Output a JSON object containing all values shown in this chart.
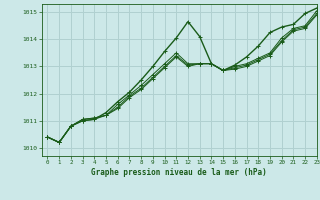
{
  "title": "Graphe pression niveau de la mer (hPa)",
  "bg_color": "#cce8e8",
  "grid_color": "#b0d0d0",
  "line_color": "#1a5c1a",
  "marker_color": "#1a5c1a",
  "xlim": [
    -0.5,
    23
  ],
  "ylim": [
    1009.7,
    1015.3
  ],
  "yticks": [
    1010,
    1011,
    1012,
    1013,
    1014,
    1015
  ],
  "xticks": [
    0,
    1,
    2,
    3,
    4,
    5,
    6,
    7,
    8,
    9,
    10,
    11,
    12,
    13,
    14,
    15,
    16,
    17,
    18,
    19,
    20,
    21,
    22,
    23
  ],
  "series": [
    [
      1010.4,
      1010.2,
      1010.8,
      1011.0,
      1011.05,
      1011.3,
      1011.7,
      1012.05,
      1012.5,
      1013.0,
      1013.55,
      1014.05,
      1014.65,
      1014.1,
      1013.1,
      1012.85,
      1013.05,
      1013.35,
      1013.75,
      1014.25,
      1014.45,
      1014.55,
      1014.95,
      1015.15
    ],
    [
      1010.4,
      1010.2,
      1010.8,
      1011.0,
      1011.05,
      1011.2,
      1011.6,
      1011.95,
      1012.3,
      1012.7,
      1013.1,
      1013.5,
      1013.1,
      1013.1,
      1013.1,
      1012.85,
      1013.0,
      1013.1,
      1013.3,
      1013.5,
      1014.05,
      1014.4,
      1014.5,
      1015.05
    ],
    [
      1010.4,
      1010.2,
      1010.8,
      1011.05,
      1011.1,
      1011.2,
      1011.5,
      1011.9,
      1012.2,
      1012.6,
      1013.0,
      1013.4,
      1013.05,
      1013.1,
      1013.1,
      1012.85,
      1012.95,
      1013.05,
      1013.25,
      1013.45,
      1013.95,
      1014.35,
      1014.45,
      1014.95
    ],
    [
      1010.4,
      1010.2,
      1010.8,
      1011.05,
      1011.1,
      1011.2,
      1011.45,
      1011.85,
      1012.15,
      1012.55,
      1012.95,
      1013.35,
      1013.0,
      1013.1,
      1013.1,
      1012.85,
      1012.9,
      1013.0,
      1013.2,
      1013.4,
      1013.9,
      1014.3,
      1014.4,
      1014.9
    ]
  ]
}
